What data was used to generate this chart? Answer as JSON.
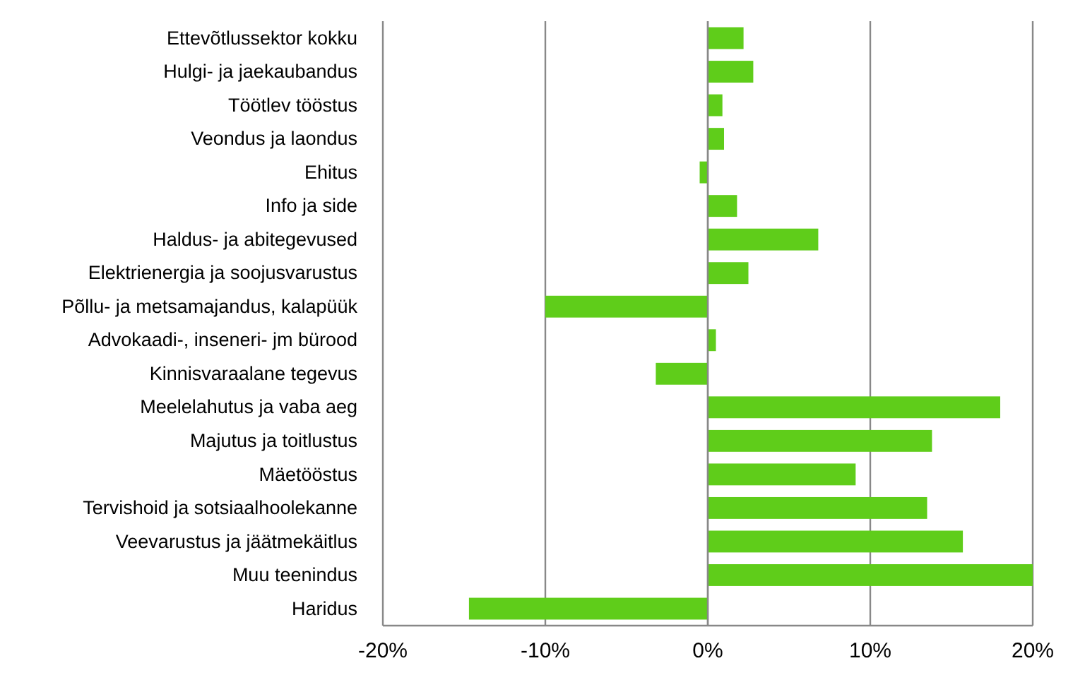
{
  "chart_data": {
    "type": "bar",
    "orientation": "horizontal",
    "categories": [
      "Ettevõtlussektor kokku",
      "Hulgi- ja jaekaubandus",
      "Töötlev tööstus",
      "Veondus ja laondus",
      "Ehitus",
      "Info ja side",
      "Haldus- ja abitegevused",
      "Elektrienergia ja soojusvarustus",
      "Põllu- ja metsamajandus, kalapüük",
      "Advokaadi-, inseneri- jm bürood",
      "Kinnisvaraalane tegevus",
      "Meelelahutus ja vaba aeg",
      "Majutus ja toitlustus",
      "Mäetööstus",
      "Tervishoid ja sotsiaalhoolekanne",
      "Veevarustus ja jäätmekäitlus",
      "Muu teenindus",
      "Haridus"
    ],
    "values": [
      2.2,
      2.8,
      0.9,
      1.0,
      -0.5,
      1.8,
      6.8,
      2.5,
      -10.0,
      0.5,
      -3.2,
      18.0,
      13.8,
      9.1,
      13.5,
      15.7,
      20.0,
      -14.7
    ],
    "color": "#5fcd1a",
    "xlim": [
      -20,
      20
    ],
    "xticks": [
      {
        "value": -20,
        "label": "-20%"
      },
      {
        "value": -10,
        "label": "-10%"
      },
      {
        "value": 0,
        "label": "0%"
      },
      {
        "value": 10,
        "label": "10%"
      },
      {
        "value": 20,
        "label": "20%"
      }
    ],
    "grid": "x"
  }
}
